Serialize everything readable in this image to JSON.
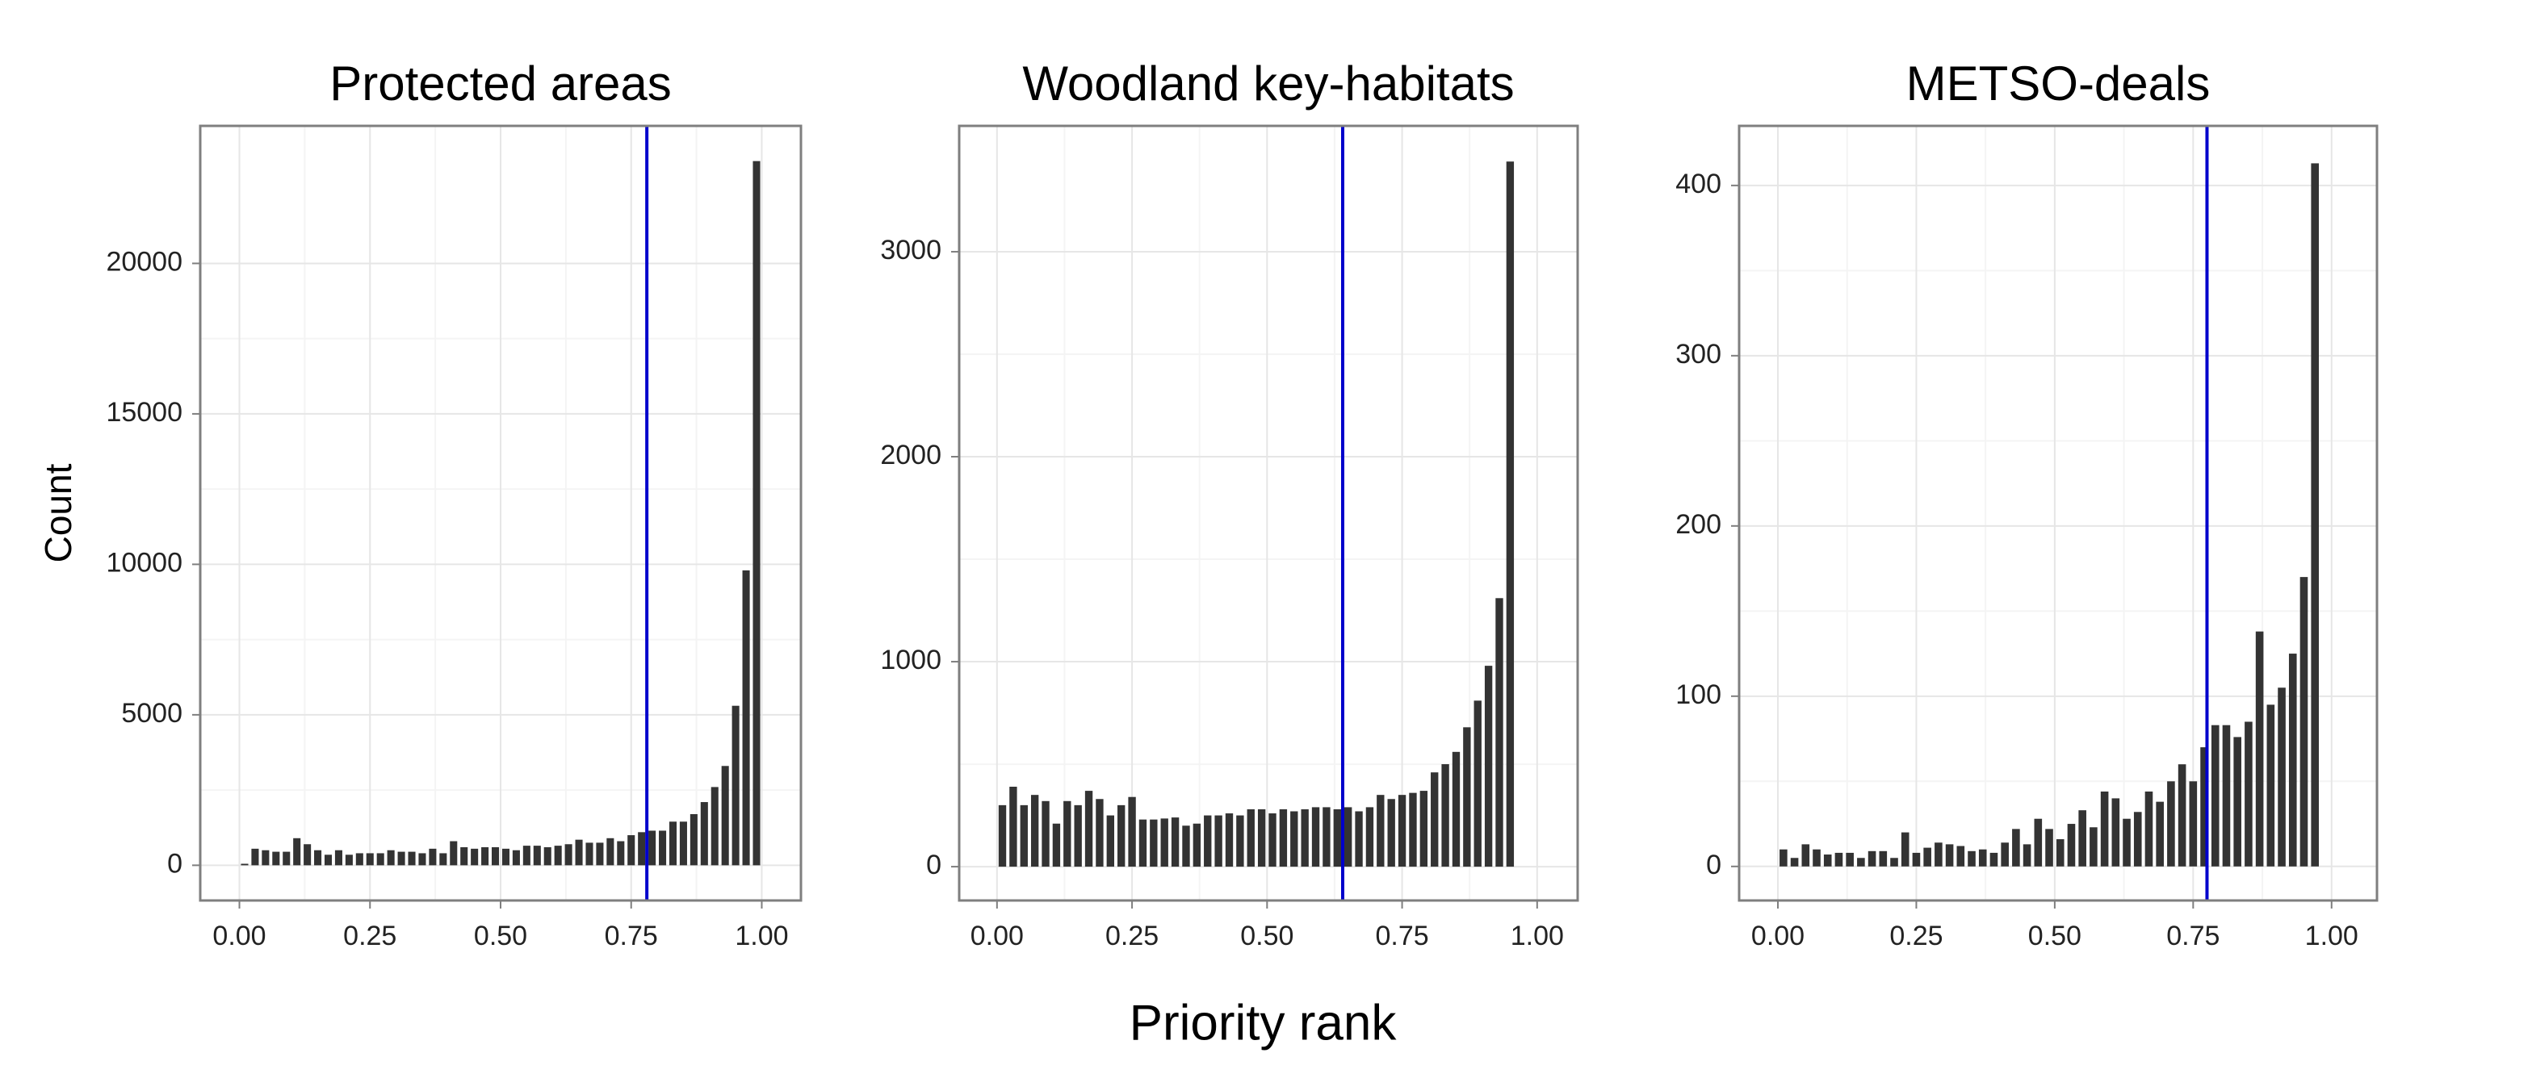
{
  "x_label": "Priority rank",
  "chart_data": [
    {
      "type": "histogram",
      "title": "Protected areas",
      "y_label": "Count",
      "bins": [
        0,
        0.02,
        0.04,
        0.06,
        0.08,
        0.1,
        0.12,
        0.14,
        0.16,
        0.18,
        0.2,
        0.22,
        0.24,
        0.26,
        0.28,
        0.3,
        0.32,
        0.34,
        0.36,
        0.38,
        0.4,
        0.42,
        0.44,
        0.46,
        0.48,
        0.5,
        0.52,
        0.54,
        0.56,
        0.58,
        0.6,
        0.62,
        0.64,
        0.66,
        0.68,
        0.7,
        0.72,
        0.74,
        0.76,
        0.78,
        0.8,
        0.82,
        0.84,
        0.86,
        0.88,
        0.9,
        0.92,
        0.94,
        0.96,
        0.98,
        1
      ],
      "counts": [
        50,
        550,
        500,
        450,
        450,
        900,
        700,
        500,
        350,
        500,
        350,
        400,
        400,
        400,
        500,
        450,
        450,
        400,
        550,
        400,
        800,
        600,
        550,
        600,
        600,
        550,
        500,
        650,
        650,
        600,
        650,
        700,
        850,
        750,
        750,
        900,
        800,
        1000,
        1100,
        1150,
        1150,
        1450,
        1450,
        1700,
        2100,
        2600,
        3300,
        5300,
        9800,
        23400
      ],
      "color": "#333333",
      "vline": 0.78,
      "vline_color": "#0000cc",
      "xlim": [
        -0.075,
        1.075
      ],
      "ylim": [
        -1170,
        24570
      ],
      "xticks": [
        {
          "value": 0,
          "label": "0.00"
        },
        {
          "value": 0.25,
          "label": "0.25"
        },
        {
          "value": 0.5,
          "label": "0.50"
        },
        {
          "value": 0.75,
          "label": "0.75"
        },
        {
          "value": 1,
          "label": "1.00"
        }
      ],
      "yticks": [
        0,
        5000,
        10000,
        15000,
        20000
      ],
      "grid": true
    },
    {
      "type": "histogram",
      "title": "Woodland key-habitats",
      "bins": [
        0,
        0.02,
        0.04,
        0.06,
        0.08,
        0.1,
        0.12,
        0.14,
        0.16,
        0.18,
        0.2,
        0.22,
        0.24,
        0.26,
        0.28,
        0.3,
        0.32,
        0.34,
        0.36,
        0.38,
        0.4,
        0.42,
        0.44,
        0.46,
        0.48,
        0.5,
        0.52,
        0.54,
        0.56,
        0.58,
        0.6,
        0.62,
        0.64,
        0.66,
        0.68,
        0.7,
        0.72,
        0.74,
        0.76,
        0.78,
        0.8,
        0.82,
        0.84,
        0.86,
        0.88,
        0.9,
        0.92,
        0.94,
        0.96,
        0.98,
        1
      ],
      "counts": [
        300,
        390,
        300,
        350,
        320,
        210,
        320,
        300,
        370,
        330,
        250,
        300,
        340,
        230,
        230,
        235,
        240,
        200,
        210,
        250,
        250,
        260,
        250,
        280,
        280,
        260,
        280,
        270,
        280,
        290,
        290,
        280,
        290,
        270,
        290,
        350,
        330,
        350,
        360,
        370,
        460,
        500,
        560,
        680,
        810,
        980,
        1310,
        3440,
        0,
        0
      ],
      "color": "#333333",
      "vline": 0.64,
      "vline_color": "#0000cc",
      "xlim": [
        -0.07,
        1.075
      ],
      "ylim": [
        -165,
        3614
      ],
      "xticks": [
        {
          "value": 0,
          "label": "0.00"
        },
        {
          "value": 0.25,
          "label": "0.25"
        },
        {
          "value": 0.5,
          "label": "0.50"
        },
        {
          "value": 0.75,
          "label": "0.75"
        },
        {
          "value": 1,
          "label": "1.00"
        }
      ],
      "yticks": [
        0,
        1000,
        2000,
        3000
      ],
      "grid": true
    },
    {
      "type": "histogram",
      "title": "METSO-deals",
      "bins": [
        0,
        0.02,
        0.04,
        0.06,
        0.08,
        0.1,
        0.12,
        0.14,
        0.16,
        0.18,
        0.2,
        0.22,
        0.24,
        0.26,
        0.28,
        0.3,
        0.32,
        0.34,
        0.36,
        0.38,
        0.4,
        0.42,
        0.44,
        0.46,
        0.48,
        0.5,
        0.52,
        0.54,
        0.56,
        0.58,
        0.6,
        0.62,
        0.64,
        0.66,
        0.68,
        0.7,
        0.72,
        0.74,
        0.76,
        0.78,
        0.8,
        0.82,
        0.84,
        0.86,
        0.88,
        0.9,
        0.92,
        0.94,
        0.96,
        0.98,
        1
      ],
      "counts": [
        10,
        5,
        13,
        10,
        7,
        8,
        8,
        5,
        9,
        9,
        5,
        20,
        8,
        11,
        14,
        13,
        12,
        9,
        10,
        8,
        14,
        22,
        13,
        28,
        22,
        16,
        25,
        33,
        23,
        44,
        40,
        28,
        32,
        44,
        38,
        50,
        60,
        50,
        70,
        83,
        83,
        76,
        85,
        138,
        95,
        105,
        125,
        170,
        413,
        0
      ],
      "color": "#333333",
      "vline": 0.775,
      "vline_color": "#0000cc",
      "xlim": [
        -0.07,
        1.082
      ],
      "ylim": [
        -20,
        435
      ],
      "xticks": [
        {
          "value": 0,
          "label": "0.00"
        },
        {
          "value": 0.25,
          "label": "0.25"
        },
        {
          "value": 0.5,
          "label": "0.50"
        },
        {
          "value": 0.75,
          "label": "0.75"
        },
        {
          "value": 1,
          "label": "1.00"
        }
      ],
      "yticks": [
        0,
        100,
        200,
        300,
        400
      ],
      "grid": true
    }
  ]
}
